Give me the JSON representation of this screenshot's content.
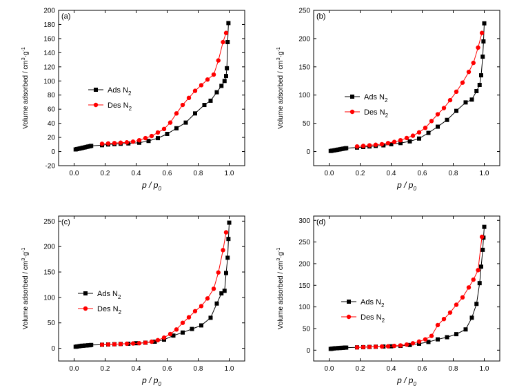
{
  "figure": {
    "colors": {
      "ads": "#000000",
      "des": "#ff0000",
      "axis": "#000000"
    }
  },
  "chart_data": [
    {
      "panel": "(a)",
      "type": "line",
      "xlabel": "p / p0",
      "ylabel": "Volume adsorbed / cm3·g-1",
      "xlim": [
        -0.1,
        1.1
      ],
      "ylim": [
        -20,
        200
      ],
      "xticks": [
        "0.0",
        "0.2",
        "0.4",
        "0.6",
        "0.8",
        "1.0"
      ],
      "yticks": [
        "-20",
        "0",
        "20",
        "40",
        "60",
        "80",
        "100",
        "120",
        "140",
        "160",
        "180",
        "200"
      ],
      "xtick_values": [
        0,
        0.2,
        0.4,
        0.6,
        0.8,
        1.0
      ],
      "ytick_values": [
        -20,
        0,
        20,
        40,
        60,
        80,
        100,
        120,
        140,
        160,
        180,
        200
      ],
      "legend_position": "center-left",
      "series": [
        {
          "name": "Ads N2",
          "marker": "square",
          "color": "#000000",
          "x": [
            0.01,
            0.02,
            0.03,
            0.04,
            0.05,
            0.06,
            0.07,
            0.08,
            0.09,
            0.1,
            0.11,
            0.18,
            0.22,
            0.26,
            0.3,
            0.35,
            0.42,
            0.48,
            0.54,
            0.6,
            0.66,
            0.72,
            0.78,
            0.84,
            0.88,
            0.92,
            0.95,
            0.97,
            0.98,
            0.985,
            0.99,
            0.995
          ],
          "y": [
            3,
            3.5,
            4,
            4.5,
            5,
            5.5,
            6,
            6.5,
            7,
            7.5,
            8,
            9,
            10,
            10.5,
            11,
            11.5,
            12.5,
            15,
            19,
            25,
            33,
            41,
            54,
            66,
            72,
            84,
            93,
            100,
            107,
            118,
            155,
            182
          ]
        },
        {
          "name": "Des N2",
          "marker": "circle",
          "color": "#ff0000",
          "x": [
            0.18,
            0.22,
            0.26,
            0.3,
            0.34,
            0.38,
            0.42,
            0.46,
            0.5,
            0.54,
            0.58,
            0.62,
            0.66,
            0.7,
            0.74,
            0.78,
            0.82,
            0.86,
            0.9,
            0.93,
            0.96,
            0.98
          ],
          "y": [
            11,
            11.5,
            12,
            12.5,
            13,
            14,
            16,
            19,
            22,
            27,
            32,
            41,
            54,
            66,
            76,
            86,
            94,
            102,
            109,
            129,
            155,
            168
          ]
        }
      ]
    },
    {
      "panel": "(b)",
      "type": "line",
      "xlabel": "p / p0",
      "ylabel": "Volume adsorbed / cm3·g-1",
      "xlim": [
        -0.1,
        1.1
      ],
      "ylim": [
        -25,
        250
      ],
      "xticks": [
        "0.0",
        "0.2",
        "0.4",
        "0.6",
        "0.8",
        "1.0"
      ],
      "yticks": [
        "0",
        "50",
        "100",
        "150",
        "200",
        "250"
      ],
      "xtick_values": [
        0,
        0.2,
        0.4,
        0.6,
        0.8,
        1.0
      ],
      "ytick_values": [
        0,
        50,
        100,
        150,
        200,
        250
      ],
      "legend_position": "center-left",
      "series": [
        {
          "name": "Ads N2",
          "marker": "square",
          "color": "#000000",
          "x": [
            0.01,
            0.02,
            0.03,
            0.04,
            0.05,
            0.06,
            0.07,
            0.08,
            0.09,
            0.1,
            0.11,
            0.18,
            0.22,
            0.26,
            0.3,
            0.35,
            0.4,
            0.46,
            0.52,
            0.58,
            0.64,
            0.7,
            0.76,
            0.82,
            0.88,
            0.92,
            0.95,
            0.97,
            0.98,
            0.99,
            0.995,
            1.0
          ],
          "y": [
            1,
            1.5,
            2,
            2.5,
            3,
            3.5,
            4,
            4.5,
            5,
            5.5,
            6,
            7,
            8,
            9,
            10,
            11,
            13,
            15,
            18,
            23,
            33,
            44,
            56,
            72,
            87,
            92,
            107,
            118,
            135,
            168,
            195,
            227
          ]
        },
        {
          "name": "Des N2",
          "marker": "circle",
          "color": "#ff0000",
          "x": [
            0.18,
            0.22,
            0.26,
            0.3,
            0.34,
            0.38,
            0.42,
            0.46,
            0.5,
            0.54,
            0.58,
            0.62,
            0.66,
            0.7,
            0.74,
            0.78,
            0.82,
            0.86,
            0.9,
            0.93,
            0.96,
            0.985
          ],
          "y": [
            9,
            10,
            11,
            12,
            13,
            15,
            17,
            20,
            24,
            28,
            34,
            42,
            54,
            66,
            77,
            91,
            106,
            122,
            141,
            157,
            184,
            210
          ]
        }
      ]
    },
    {
      "panel": "(c)",
      "type": "line",
      "xlabel": "p / p0",
      "ylabel": "Volume adsorbed / cm3·g-1",
      "xlim": [
        -0.1,
        1.1
      ],
      "ylim": [
        -25,
        260
      ],
      "xticks": [
        "0.0",
        "0.2",
        "0.4",
        "0.6",
        "0.8",
        "1.0"
      ],
      "yticks": [
        "0",
        "50",
        "100",
        "150",
        "200",
        "250"
      ],
      "xtick_values": [
        0,
        0.2,
        0.4,
        0.6,
        0.8,
        1.0
      ],
      "ytick_values": [
        0,
        50,
        100,
        150,
        200,
        250
      ],
      "legend_position": "center-left",
      "series": [
        {
          "name": "Ads N2",
          "marker": "square",
          "color": "#000000",
          "x": [
            0.01,
            0.02,
            0.03,
            0.04,
            0.05,
            0.06,
            0.07,
            0.08,
            0.09,
            0.1,
            0.11,
            0.18,
            0.22,
            0.26,
            0.3,
            0.35,
            0.4,
            0.46,
            0.52,
            0.58,
            0.64,
            0.7,
            0.76,
            0.82,
            0.88,
            0.92,
            0.95,
            0.97,
            0.98,
            0.99,
            0.995,
            1.0
          ],
          "y": [
            3,
            3.5,
            4,
            4.5,
            5,
            5,
            5.5,
            5.5,
            6,
            6,
            6.5,
            7,
            7.5,
            8,
            8.5,
            9,
            10,
            11,
            13,
            17,
            25,
            31,
            38,
            45,
            60,
            88,
            108,
            113,
            148,
            178,
            215,
            247
          ]
        },
        {
          "name": "Des N2",
          "marker": "circle",
          "color": "#ff0000",
          "x": [
            0.18,
            0.22,
            0.26,
            0.3,
            0.34,
            0.38,
            0.42,
            0.46,
            0.5,
            0.54,
            0.58,
            0.62,
            0.66,
            0.7,
            0.74,
            0.78,
            0.82,
            0.86,
            0.9,
            0.93,
            0.96,
            0.98
          ],
          "y": [
            7,
            7.5,
            8,
            8.5,
            9,
            9.5,
            10,
            11,
            13,
            16,
            21,
            28,
            37,
            50,
            61,
            73,
            83,
            98,
            117,
            149,
            193,
            228
          ]
        }
      ]
    },
    {
      "panel": "(d)",
      "type": "line",
      "xlabel": "p / p0",
      "ylabel": "Volume adsorbed / cm3·g-1",
      "xlim": [
        -0.1,
        1.1
      ],
      "ylim": [
        -25,
        310
      ],
      "xticks": [
        "0.0",
        "0.2",
        "0.4",
        "0.6",
        "0.8",
        "1.0"
      ],
      "yticks": [
        "0",
        "50",
        "100",
        "150",
        "200",
        "250",
        "300"
      ],
      "xtick_values": [
        0,
        0.2,
        0.4,
        0.6,
        0.8,
        1.0
      ],
      "ytick_values": [
        0,
        50,
        100,
        150,
        200,
        250,
        300
      ],
      "legend_position": "center-left",
      "series": [
        {
          "name": "Ads N2",
          "marker": "square",
          "color": "#000000",
          "x": [
            0.01,
            0.02,
            0.03,
            0.04,
            0.05,
            0.06,
            0.07,
            0.08,
            0.09,
            0.1,
            0.11,
            0.18,
            0.22,
            0.26,
            0.3,
            0.35,
            0.4,
            0.46,
            0.52,
            0.58,
            0.64,
            0.7,
            0.76,
            0.82,
            0.88,
            0.92,
            0.95,
            0.97,
            0.98,
            0.99,
            0.995,
            1.0
          ],
          "y": [
            3,
            3.5,
            4,
            4.5,
            4.5,
            5,
            5,
            5.5,
            5.5,
            6,
            6,
            6.5,
            7,
            7.5,
            8,
            8.5,
            9,
            10,
            12,
            15,
            19,
            25,
            30,
            37,
            48,
            75,
            107,
            155,
            193,
            232,
            260,
            285
          ]
        },
        {
          "name": "Des N2",
          "marker": "circle",
          "color": "#ff0000",
          "x": [
            0.18,
            0.22,
            0.26,
            0.3,
            0.34,
            0.38,
            0.42,
            0.46,
            0.5,
            0.54,
            0.58,
            0.62,
            0.66,
            0.7,
            0.74,
            0.78,
            0.82,
            0.86,
            0.9,
            0.93,
            0.96,
            0.985
          ],
          "y": [
            6.5,
            7,
            7.5,
            8,
            8.5,
            9,
            10,
            11,
            13,
            16,
            20,
            25,
            33,
            58,
            72,
            87,
            105,
            122,
            145,
            163,
            185,
            262
          ]
        }
      ]
    }
  ]
}
